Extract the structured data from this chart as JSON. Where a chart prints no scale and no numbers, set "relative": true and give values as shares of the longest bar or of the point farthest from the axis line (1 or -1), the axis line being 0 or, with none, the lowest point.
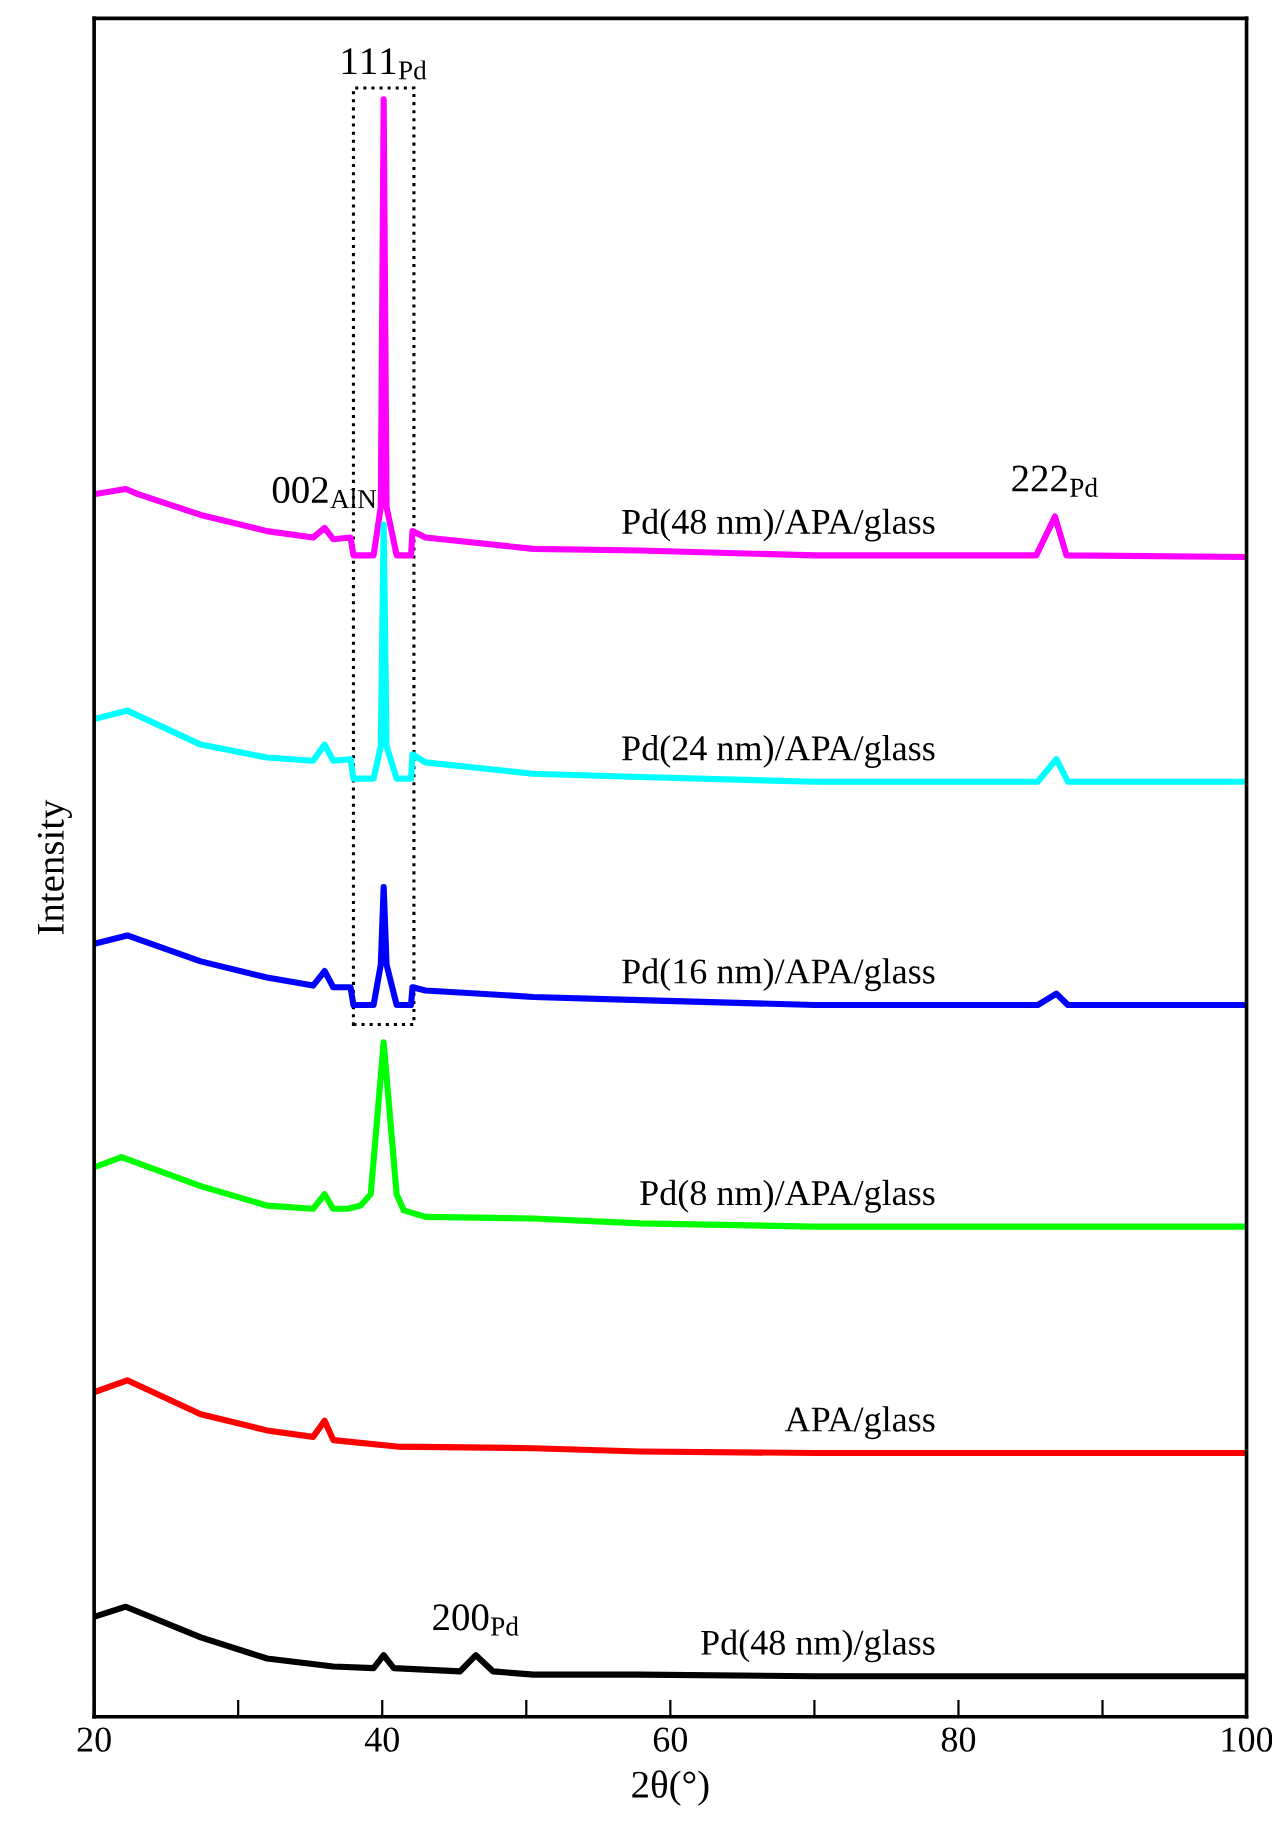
{
  "chart_data": {
    "type": "line",
    "relative": true,
    "xlabel": "2θ(°)",
    "ylabel": "Intensity",
    "xlim": [
      20,
      100
    ],
    "xticks": [
      20,
      {
        "value": 30,
        "label": null
      },
      40,
      {
        "value": 50,
        "label": null
      },
      60,
      {
        "value": 70,
        "label": null
      },
      80,
      {
        "value": 90,
        "label": null
      },
      100
    ],
    "tick_labels": "x",
    "grid": false,
    "legend": false,
    "line_style": "solid",
    "marker": "none",
    "series": [
      {
        "name": "Pd(48 nm)/APA/glass",
        "color": "#ff00ff",
        "x": [
          20.1,
          22.2,
          23,
          27.4,
          32,
          35.2,
          36,
          36.6,
          37.8,
          38,
          39.4,
          39.9,
          40.1,
          40.3,
          41,
          42,
          42.1,
          43,
          50.5,
          57.9,
          70,
          85.4,
          86.7,
          87.5,
          100
        ],
        "values": [
          0.756,
          0.759,
          0.756,
          0.743,
          0.733,
          0.729,
          0.735,
          0.728,
          0.729,
          0.718,
          0.718,
          0.748,
          1.0,
          0.748,
          0.718,
          0.718,
          0.733,
          0.729,
          0.722,
          0.721,
          0.718,
          0.718,
          0.742,
          0.718,
          0.717
        ]
      },
      {
        "name": "Pd(24 nm)/APA/glass",
        "color": "#00ffff",
        "x": [
          20.1,
          22.3,
          27.4,
          32,
          35.2,
          36,
          36.6,
          37.8,
          38,
          39.4,
          39.9,
          40.1,
          40.3,
          41,
          42,
          42.1,
          43,
          50.5,
          57.9,
          70,
          85.5,
          86.8,
          87.6,
          100
        ],
        "values": [
          0.617,
          0.622,
          0.601,
          0.593,
          0.591,
          0.601,
          0.591,
          0.592,
          0.58,
          0.58,
          0.6,
          0.737,
          0.6,
          0.58,
          0.58,
          0.595,
          0.59,
          0.583,
          0.581,
          0.578,
          0.578,
          0.592,
          0.578,
          0.578
        ]
      },
      {
        "name": "Pd(16 nm)/APA/glass",
        "color": "#0000ff",
        "x": [
          20.1,
          22.3,
          27.4,
          32,
          35.2,
          36,
          36.6,
          37.8,
          38,
          39.4,
          39.9,
          40.1,
          40.3,
          41,
          42,
          42.1,
          43,
          50.5,
          57.9,
          70,
          85.5,
          86.8,
          87.6,
          100
        ],
        "values": [
          0.478,
          0.483,
          0.467,
          0.457,
          0.452,
          0.461,
          0.451,
          0.451,
          0.44,
          0.44,
          0.465,
          0.513,
          0.465,
          0.44,
          0.44,
          0.451,
          0.449,
          0.445,
          0.443,
          0.44,
          0.44,
          0.447,
          0.44,
          0.44
        ]
      },
      {
        "name": "Pd(8 nm)/APA/glass",
        "color": "#00ff00",
        "x": [
          20.1,
          21.9,
          27.4,
          32,
          35.2,
          36,
          36.6,
          37.6,
          38.5,
          39.2,
          40.1,
          41,
          41.5,
          43,
          50.5,
          57.9,
          70,
          100
        ],
        "values": [
          0.34,
          0.346,
          0.328,
          0.316,
          0.314,
          0.323,
          0.314,
          0.314,
          0.316,
          0.323,
          0.417,
          0.323,
          0.313,
          0.309,
          0.308,
          0.305,
          0.303,
          0.303
        ]
      },
      {
        "name": "APA/glass",
        "color": "#ff0000",
        "x": [
          20.1,
          22.3,
          27.4,
          32,
          35.2,
          36,
          36.6,
          41,
          50.5,
          57.9,
          70,
          100
        ],
        "values": [
          0.201,
          0.208,
          0.187,
          0.177,
          0.173,
          0.183,
          0.171,
          0.167,
          0.166,
          0.164,
          0.163,
          0.163
        ]
      },
      {
        "name": "Pd(48 nm)/glass",
        "color": "#000000",
        "x": [
          20.1,
          22.2,
          27.4,
          32,
          36.6,
          39.4,
          40.1,
          40.8,
          45.4,
          46.5,
          47.7,
          50.5,
          57.9,
          70,
          100
        ],
        "values": [
          0.062,
          0.068,
          0.049,
          0.036,
          0.031,
          0.03,
          0.038,
          0.03,
          0.028,
          0.038,
          0.028,
          0.026,
          0.026,
          0.025,
          0.025
        ]
      }
    ],
    "annotations": [
      {
        "text": "111$_{Pd}$",
        "x": 40.1,
        "y": 1.0
      },
      {
        "text": "002$_{AlN}$",
        "x": 36,
        "y": 0.735
      },
      {
        "text": "222$_{Pd}$",
        "x": 86.7,
        "y": 0.742
      },
      {
        "text": "200$_{Pd}$",
        "x": 46.5,
        "y": 0.038
      }
    ]
  }
}
